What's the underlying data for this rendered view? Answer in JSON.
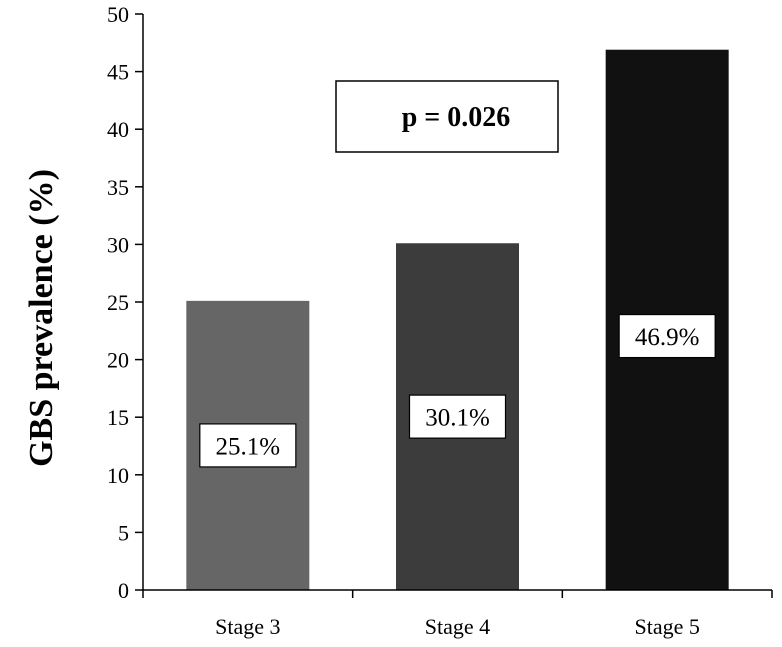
{
  "chart_data": {
    "type": "bar",
    "categories": [
      "Stage 3",
      "Stage 4",
      "Stage 5"
    ],
    "values": [
      25.1,
      30.1,
      46.9
    ],
    "data_labels": [
      "25.1%",
      "30.1%",
      "46.9%"
    ],
    "colors": [
      "#666666",
      "#3c3c3c",
      "#111111"
    ],
    "title": "",
    "xlabel": "",
    "ylabel": "GBS prevalence (%)",
    "ylim": [
      0,
      50
    ],
    "yticks": [
      0,
      5,
      10,
      15,
      20,
      25,
      30,
      35,
      40,
      45,
      50
    ],
    "annotation": "p = 0.026",
    "grid": false,
    "legend": "none"
  }
}
